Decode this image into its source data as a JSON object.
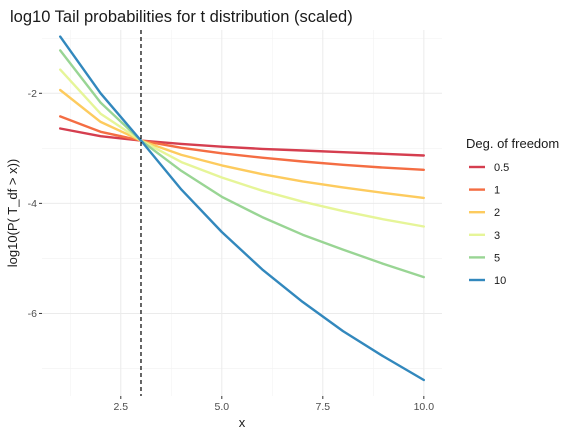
{
  "chart_data": {
    "type": "line",
    "title": "log10 Tail probabilities for t distribution (scaled)",
    "xlabel": "x",
    "ylabel": "log10(P( T_df > x))",
    "xlim": [
      0.55,
      10.45
    ],
    "ylim": [
      -7.5,
      -0.85
    ],
    "x_ticks": [
      2.5,
      5.0,
      7.5,
      10.0
    ],
    "x_tick_labels": [
      "2.5",
      "5.0",
      "7.5",
      "10.0"
    ],
    "y_ticks": [
      -2,
      -4,
      -6
    ],
    "y_tick_labels": [
      "-2",
      "-4",
      "-6"
    ],
    "x_minor": [
      1.25,
      3.75,
      6.25,
      8.75
    ],
    "y_minor": [
      -1,
      -3,
      -5,
      -7
    ],
    "vline": 3,
    "grid": true,
    "legend_title": "Deg. of freedom",
    "legend_position": "right",
    "x": [
      1,
      2,
      3,
      4,
      5,
      6,
      7,
      8,
      9,
      10
    ],
    "series": [
      {
        "name": "0.5",
        "color": "#d53e4f",
        "values": [
          -2.64,
          -2.78,
          -2.86,
          -2.92,
          -2.97,
          -3.01,
          -3.04,
          -3.07,
          -3.1,
          -3.13
        ]
      },
      {
        "name": "1",
        "color": "#f46d43",
        "values": [
          -2.42,
          -2.7,
          -2.86,
          -2.99,
          -3.09,
          -3.17,
          -3.24,
          -3.3,
          -3.35,
          -3.39
        ]
      },
      {
        "name": "2",
        "color": "#fdcb5e",
        "values": [
          -1.94,
          -2.52,
          -2.86,
          -3.12,
          -3.31,
          -3.47,
          -3.6,
          -3.71,
          -3.81,
          -3.9
        ]
      },
      {
        "name": "3",
        "color": "#e6f598",
        "values": [
          -1.57,
          -2.37,
          -2.86,
          -3.25,
          -3.53,
          -3.77,
          -3.97,
          -4.14,
          -4.29,
          -4.42
        ]
      },
      {
        "name": "5",
        "color": "#99d594",
        "values": [
          -1.22,
          -2.17,
          -2.86,
          -3.41,
          -3.88,
          -4.25,
          -4.57,
          -4.84,
          -5.1,
          -5.34
        ]
      },
      {
        "name": "10",
        "color": "#3288bd",
        "values": [
          -0.97,
          -2.0,
          -2.86,
          -3.75,
          -4.52,
          -5.2,
          -5.79,
          -6.32,
          -6.78,
          -7.21
        ]
      }
    ]
  }
}
